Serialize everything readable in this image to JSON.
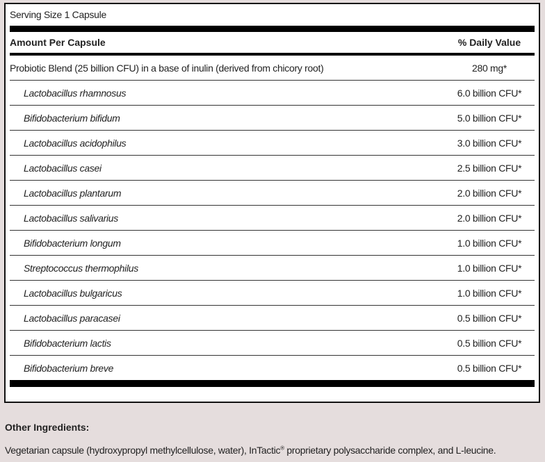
{
  "serving_size": "Serving Size 1 Capsule",
  "header": {
    "amount": "Amount Per Capsule",
    "dv": "% Daily Value"
  },
  "blend": {
    "name": "Probiotic Blend (25 billion CFU) in a base of inulin (derived from chicory root)",
    "value": "280 mg*"
  },
  "strains": [
    {
      "name": "Lactobacillus rhamnosus",
      "value": "6.0 billion CFU*"
    },
    {
      "name": "Bifidobacterium bifidum",
      "value": "5.0 billion CFU*"
    },
    {
      "name": "Lactobacillus acidophilus",
      "value": "3.0 billion CFU*"
    },
    {
      "name": "Lactobacillus casei",
      "value": "2.5 billion CFU*"
    },
    {
      "name": "Lactobacillus plantarum",
      "value": "2.0 billion CFU*"
    },
    {
      "name": "Lactobacillus salivarius",
      "value": "2.0 billion CFU*"
    },
    {
      "name": "Bifidobacterium longum",
      "value": "1.0 billion CFU*"
    },
    {
      "name": "Streptococcus thermophilus",
      "value": "1.0 billion CFU*"
    },
    {
      "name": "Lactobacillus bulgaricus",
      "value": "1.0 billion CFU*"
    },
    {
      "name": "Lactobacillus paracasei",
      "value": "0.5 billion CFU*"
    },
    {
      "name": "Bifidobacterium lactis",
      "value": "0.5 billion CFU*"
    },
    {
      "name": "Bifidobacterium breve",
      "value": "0.5 billion CFU*"
    }
  ],
  "other": {
    "title": "Other Ingredients:",
    "text_before": "Vegetarian capsule (hydroxypropyl methylcellulose, water), InTactic",
    "reg": "®",
    "text_after": " proprietary polysaccharide complex, and L-leucine."
  }
}
